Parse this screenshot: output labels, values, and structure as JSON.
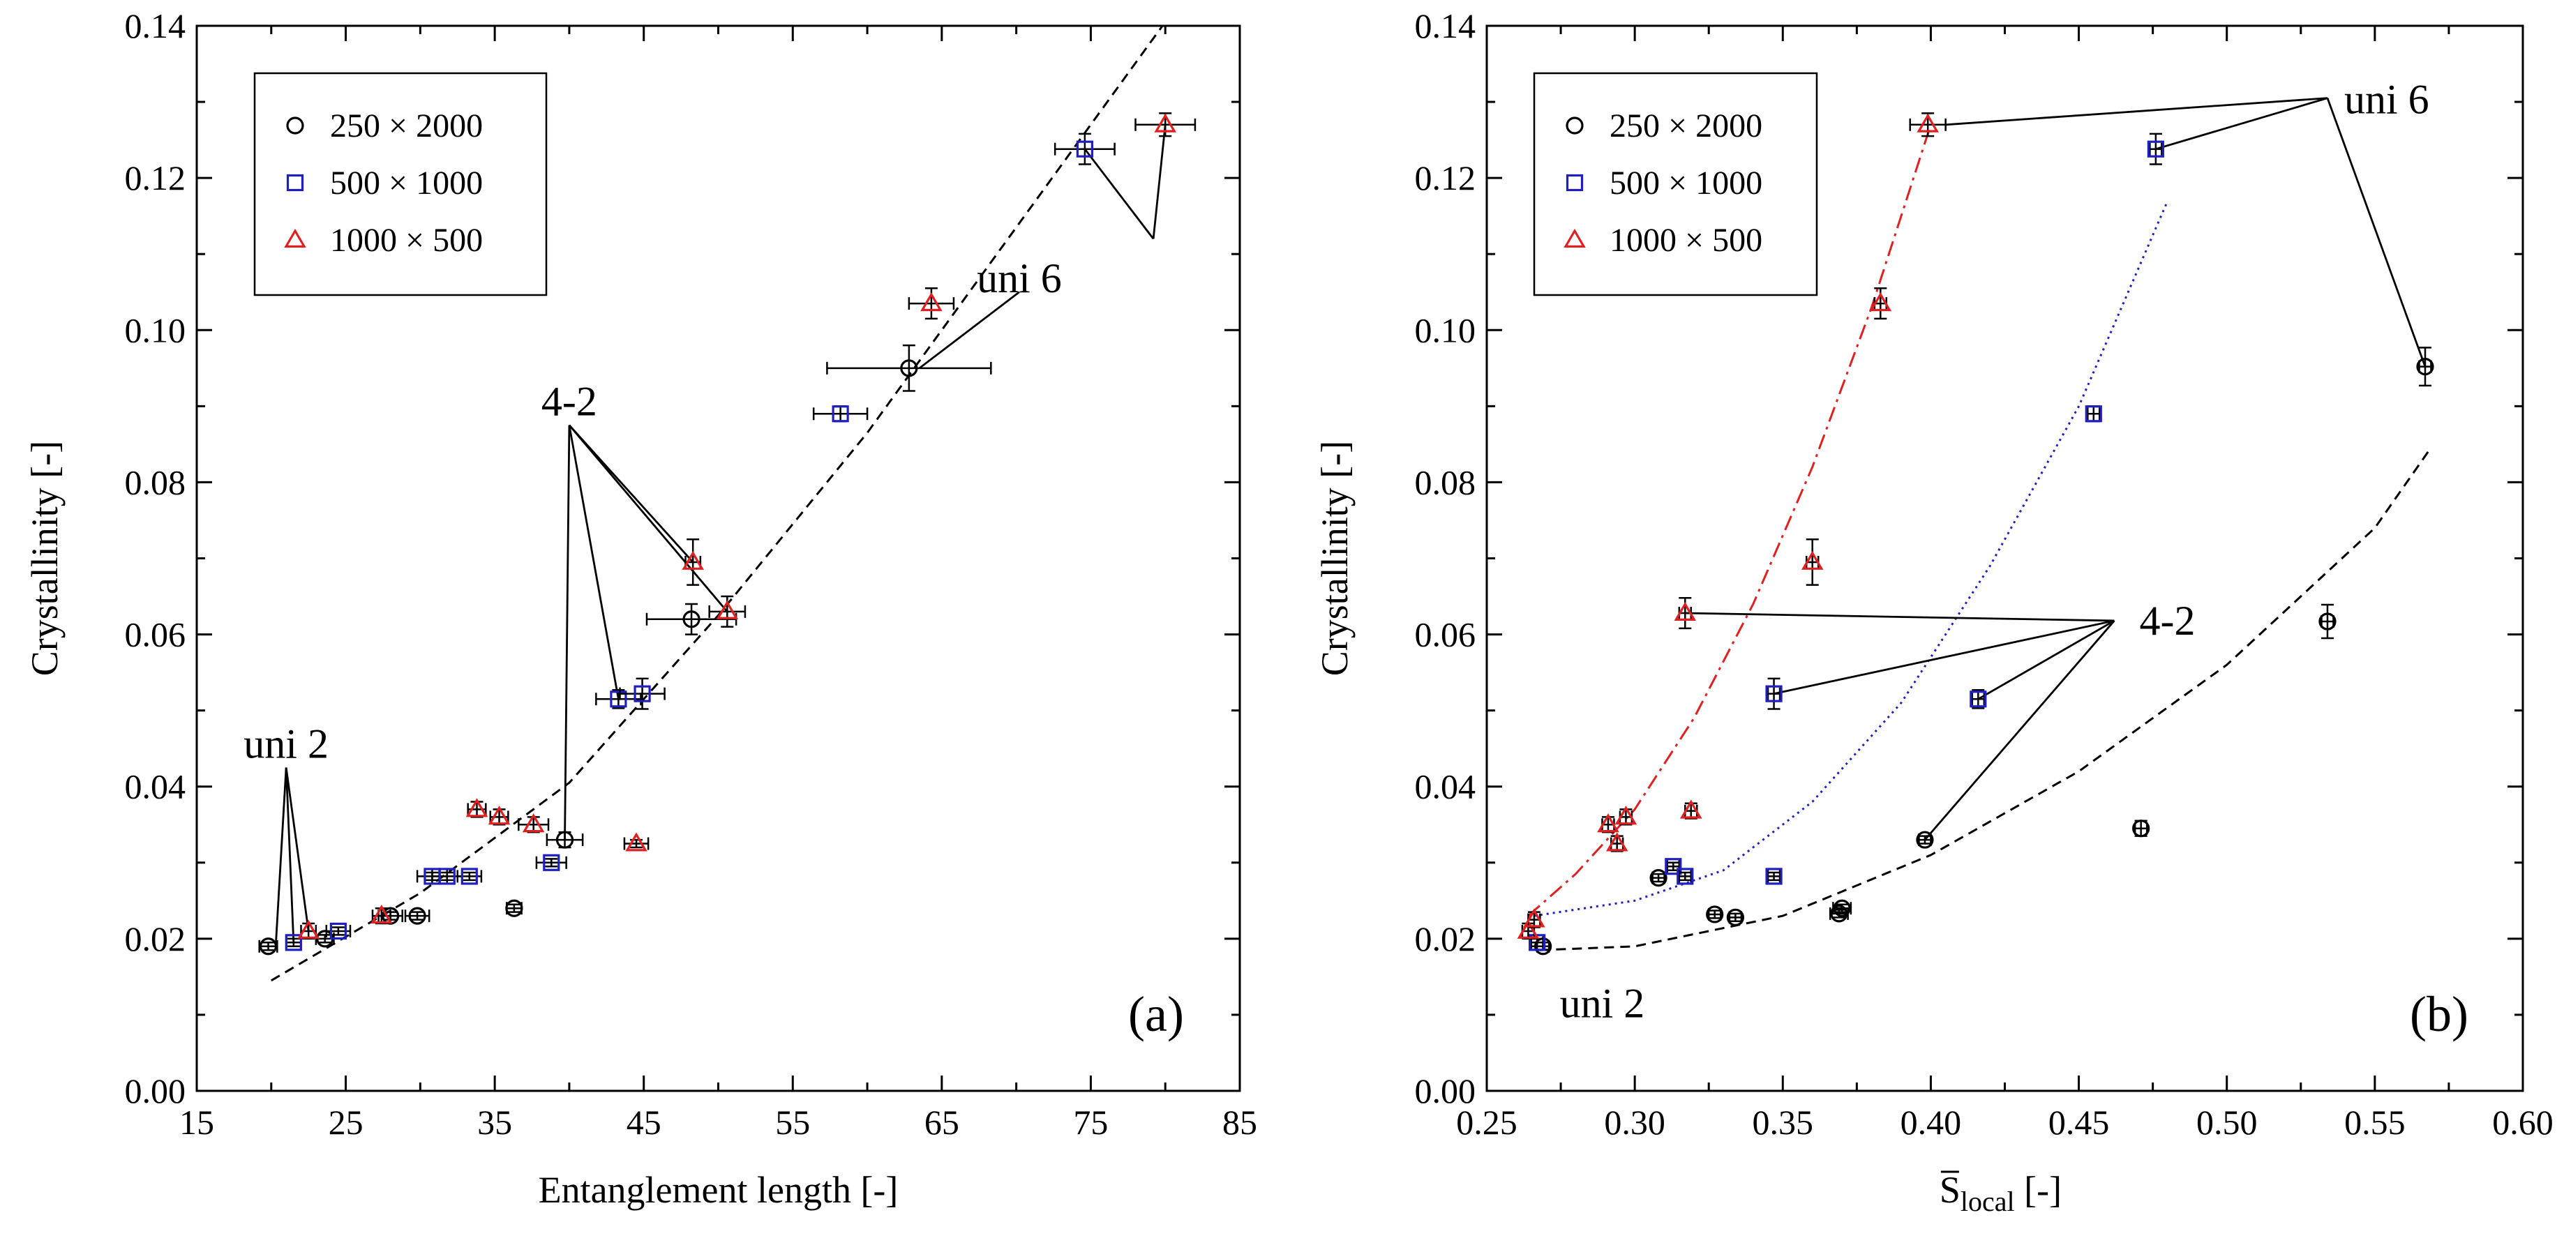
{
  "chart_data": [
    {
      "panel": "(a)",
      "type": "scatter",
      "xlabel": "Entanglement length [-]",
      "ylabel": "Crystallinity [-]",
      "xlim": [
        15,
        85
      ],
      "ylim": [
        0,
        0.14
      ],
      "xticks": [
        "15",
        "25",
        "35",
        "45",
        "55",
        "65",
        "75",
        "85"
      ],
      "yticks": [
        "0.00",
        "0.02",
        "0.04",
        "0.06",
        "0.08",
        "0.10",
        "0.12",
        "0.14"
      ],
      "legend": {
        "position": "top-left",
        "entries": [
          "250 × 2000",
          "500 × 1000",
          "1000 × 500"
        ]
      },
      "series": [
        {
          "name": "250 × 2000",
          "marker": "circle",
          "color": "#000000",
          "points": [
            {
              "x": 19.8,
              "y": 0.019,
              "xerr": 0.6,
              "yerr": 0.0005
            },
            {
              "x": 23.6,
              "y": 0.02,
              "xerr": 0.6,
              "yerr": 0.0005
            },
            {
              "x": 28.0,
              "y": 0.023,
              "xerr": 0.8,
              "yerr": 0.0005
            },
            {
              "x": 29.8,
              "y": 0.023,
              "xerr": 0.8,
              "yerr": 0.0005
            },
            {
              "x": 36.3,
              "y": 0.024,
              "xerr": 0.5,
              "yerr": 0.0005
            },
            {
              "x": 39.7,
              "y": 0.033,
              "xerr": 1.2,
              "yerr": 0.001
            },
            {
              "x": 48.2,
              "y": 0.062,
              "xerr": 3.0,
              "yerr": 0.002
            },
            {
              "x": 62.8,
              "y": 0.095,
              "xerr": 5.5,
              "yerr": 0.003
            }
          ]
        },
        {
          "name": "500 × 1000",
          "marker": "square",
          "color": "#1f1fbf",
          "points": [
            {
              "x": 21.5,
              "y": 0.0195,
              "xerr": 0.5,
              "yerr": 0.0005
            },
            {
              "x": 24.5,
              "y": 0.021,
              "xerr": 0.8,
              "yerr": 0.0005
            },
            {
              "x": 30.8,
              "y": 0.0282,
              "xerr": 1.0,
              "yerr": 0.0005
            },
            {
              "x": 31.8,
              "y": 0.0282,
              "xerr": 1.0,
              "yerr": 0.0005
            },
            {
              "x": 33.3,
              "y": 0.0282,
              "xerr": 0.8,
              "yerr": 0.0005
            },
            {
              "x": 38.8,
              "y": 0.03,
              "xerr": 1.0,
              "yerr": 0.0005
            },
            {
              "x": 43.3,
              "y": 0.0515,
              "xerr": 1.5,
              "yerr": 0.0012
            },
            {
              "x": 44.9,
              "y": 0.0522,
              "xerr": 1.5,
              "yerr": 0.002
            },
            {
              "x": 58.2,
              "y": 0.089,
              "xerr": 1.8,
              "yerr": 0.001
            },
            {
              "x": 74.6,
              "y": 0.1238,
              "xerr": 2.0,
              "yerr": 0.002
            }
          ]
        },
        {
          "name": "1000 × 500",
          "marker": "triangle",
          "color": "#e02020",
          "points": [
            {
              "x": 22.5,
              "y": 0.021,
              "xerr": 0.5,
              "yerr": 0.001
            },
            {
              "x": 27.4,
              "y": 0.023,
              "xerr": 0.6,
              "yerr": 0.001
            },
            {
              "x": 33.8,
              "y": 0.037,
              "xerr": 0.6,
              "yerr": 0.001
            },
            {
              "x": 35.3,
              "y": 0.036,
              "xerr": 0.6,
              "yerr": 0.001
            },
            {
              "x": 37.6,
              "y": 0.035,
              "xerr": 1.0,
              "yerr": 0.001
            },
            {
              "x": 44.5,
              "y": 0.0325,
              "xerr": 0.8,
              "yerr": 0.0005
            },
            {
              "x": 48.3,
              "y": 0.0695,
              "xerr": 0.5,
              "yerr": 0.003
            },
            {
              "x": 50.6,
              "y": 0.063,
              "xerr": 1.2,
              "yerr": 0.002
            },
            {
              "x": 64.3,
              "y": 0.1035,
              "xerr": 1.5,
              "yerr": 0.002
            },
            {
              "x": 80.0,
              "y": 0.127,
              "xerr": 2.0,
              "yerr": 0.0015
            }
          ]
        }
      ],
      "fits": [
        {
          "style": "dashed",
          "color": "#000000",
          "x": [
            20,
            30,
            40,
            50,
            60,
            70,
            80
          ],
          "y": [
            0.0145,
            0.026,
            0.0405,
            0.0625,
            0.0865,
            0.1135,
            0.1405
          ]
        }
      ],
      "annotations": [
        {
          "text": "uni 2",
          "x": 21,
          "y": 0.0425,
          "targets": [
            [
              20.3,
              0.019
            ],
            [
              22.5,
              0.021
            ],
            [
              21.5,
              0.0195
            ]
          ]
        },
        {
          "text": "4-2",
          "x": 40,
          "y": 0.0875,
          "targets": [
            [
              39.7,
              0.033
            ],
            [
              43.3,
              0.0515
            ],
            [
              48.3,
              0.0695
            ],
            [
              50.6,
              0.063
            ]
          ]
        },
        {
          "text": "uni 6",
          "x": 70.2,
          "y": 0.105,
          "targets": [
            [
              63.5,
              0.095
            ]
          ]
        },
        {
          "text": "",
          "x": 79.2,
          "y": 0.112,
          "targets": [
            [
              80.0,
              0.127
            ],
            [
              74.6,
              0.1238
            ]
          ]
        }
      ]
    },
    {
      "panel": "(b)",
      "type": "scatter",
      "xlabel_main": "S",
      "xlabel_sub": "local",
      "xlabel_unit": " [-]",
      "ylabel": "Crystallinity [-]",
      "xlim": [
        0.25,
        0.6
      ],
      "ylim": [
        0,
        0.14
      ],
      "xticks": [
        "0.25",
        "0.30",
        "0.35",
        "0.40",
        "0.45",
        "0.50",
        "0.55",
        "0.60"
      ],
      "yticks": [
        "0.00",
        "0.02",
        "0.04",
        "0.06",
        "0.08",
        "0.10",
        "0.12",
        "0.14"
      ],
      "legend": {
        "position": "top-left",
        "entries": [
          "250 × 2000",
          "500 × 1000",
          "1000 × 500"
        ]
      },
      "series": [
        {
          "name": "250 × 2000",
          "marker": "circle",
          "color": "#000000",
          "points": [
            {
              "x": 0.269,
              "y": 0.019,
              "xerr": 0.002,
              "yerr": 0.0005
            },
            {
              "x": 0.308,
              "y": 0.028,
              "xerr": 0.002,
              "yerr": 0.0005
            },
            {
              "x": 0.327,
              "y": 0.0232,
              "xerr": 0.002,
              "yerr": 0.0005
            },
            {
              "x": 0.334,
              "y": 0.0228,
              "xerr": 0.002,
              "yerr": 0.0005
            },
            {
              "x": 0.369,
              "y": 0.0233,
              "xerr": 0.003,
              "yerr": 0.0005
            },
            {
              "x": 0.37,
              "y": 0.024,
              "xerr": 0.003,
              "yerr": 0.0005
            },
            {
              "x": 0.398,
              "y": 0.033,
              "xerr": 0.002,
              "yerr": 0.0005
            },
            {
              "x": 0.471,
              "y": 0.0345,
              "xerr": 0.002,
              "yerr": 0.001
            },
            {
              "x": 0.534,
              "y": 0.0617,
              "xerr": 0.002,
              "yerr": 0.0022
            },
            {
              "x": 0.567,
              "y": 0.0952,
              "xerr": 0.002,
              "yerr": 0.0025
            }
          ]
        },
        {
          "name": "500 × 1000",
          "marker": "square",
          "color": "#1f1fbf",
          "points": [
            {
              "x": 0.267,
              "y": 0.0195,
              "xerr": 0.002,
              "yerr": 0.0005
            },
            {
              "x": 0.313,
              "y": 0.0295,
              "xerr": 0.002,
              "yerr": 0.0005
            },
            {
              "x": 0.317,
              "y": 0.0282,
              "xerr": 0.002,
              "yerr": 0.0005
            },
            {
              "x": 0.347,
              "y": 0.0282,
              "xerr": 0.002,
              "yerr": 0.0005
            },
            {
              "x": 0.347,
              "y": 0.0522,
              "xerr": 0.002,
              "yerr": 0.002
            },
            {
              "x": 0.416,
              "y": 0.0515,
              "xerr": 0.002,
              "yerr": 0.0012
            },
            {
              "x": 0.455,
              "y": 0.089,
              "xerr": 0.002,
              "yerr": 0.001
            },
            {
              "x": 0.476,
              "y": 0.1238,
              "xerr": 0.002,
              "yerr": 0.002
            }
          ]
        },
        {
          "name": "1000 × 500",
          "marker": "triangle",
          "color": "#e02020",
          "points": [
            {
              "x": 0.264,
              "y": 0.021,
              "xerr": 0.002,
              "yerr": 0.001
            },
            {
              "x": 0.266,
              "y": 0.0225,
              "xerr": 0.002,
              "yerr": 0.001
            },
            {
              "x": 0.291,
              "y": 0.035,
              "xerr": 0.002,
              "yerr": 0.001
            },
            {
              "x": 0.294,
              "y": 0.0325,
              "xerr": 0.002,
              "yerr": 0.001
            },
            {
              "x": 0.297,
              "y": 0.036,
              "xerr": 0.002,
              "yerr": 0.001
            },
            {
              "x": 0.317,
              "y": 0.0628,
              "xerr": 0.002,
              "yerr": 0.002
            },
            {
              "x": 0.319,
              "y": 0.0368,
              "xerr": 0.002,
              "yerr": 0.001
            },
            {
              "x": 0.36,
              "y": 0.0695,
              "xerr": 0.002,
              "yerr": 0.003
            },
            {
              "x": 0.383,
              "y": 0.1035,
              "xerr": 0.002,
              "yerr": 0.002
            },
            {
              "x": 0.399,
              "y": 0.127,
              "xerr": 0.006,
              "yerr": 0.0015
            }
          ]
        }
      ],
      "fits": [
        {
          "style": "dash-dot",
          "color": "#e02020",
          "x": [
            0.264,
            0.28,
            0.3,
            0.32,
            0.34,
            0.36,
            0.38,
            0.4
          ],
          "y": [
            0.023,
            0.0285,
            0.037,
            0.049,
            0.064,
            0.082,
            0.103,
            0.127
          ]
        },
        {
          "style": "dotted",
          "color": "#1f1fbf",
          "x": [
            0.266,
            0.3,
            0.33,
            0.36,
            0.39,
            0.42,
            0.45,
            0.48
          ],
          "y": [
            0.023,
            0.025,
            0.029,
            0.038,
            0.051,
            0.069,
            0.09,
            0.117
          ]
        },
        {
          "style": "dashed",
          "color": "#000000",
          "x": [
            0.268,
            0.3,
            0.35,
            0.4,
            0.45,
            0.5,
            0.55,
            0.568
          ],
          "y": [
            0.0185,
            0.019,
            0.023,
            0.031,
            0.042,
            0.056,
            0.074,
            0.084
          ]
        }
      ],
      "annotations": [
        {
          "text": "uni 2",
          "x": 0.289,
          "y": 0.0115,
          "targets": []
        },
        {
          "text": "4-2",
          "x": 0.462,
          "y": 0.0618,
          "targets": [
            [
              0.317,
              0.0628
            ],
            [
              0.347,
              0.0522
            ],
            [
              0.416,
              0.0515
            ],
            [
              0.398,
              0.033
            ]
          ]
        },
        {
          "text": "uni 6",
          "x": 0.534,
          "y": 0.1305,
          "targets": [
            [
              0.405,
              0.127
            ],
            [
              0.476,
              0.1238
            ],
            [
              0.567,
              0.0952
            ]
          ]
        }
      ]
    }
  ]
}
